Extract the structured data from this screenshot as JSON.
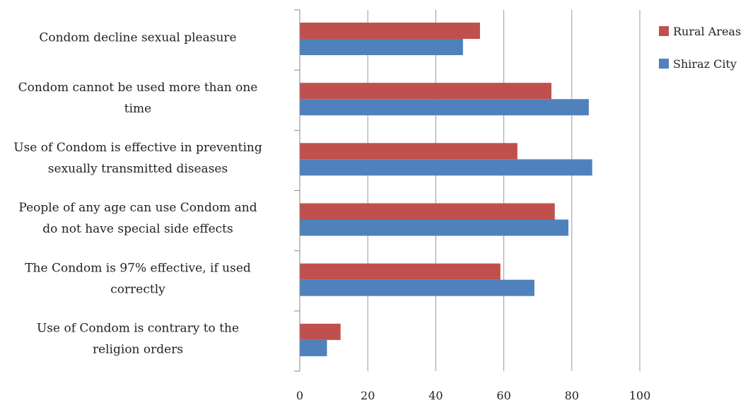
{
  "chart_data": {
    "type": "bar",
    "orientation": "horizontal",
    "categories": [
      [
        "Condom decline sexual pleasure"
      ],
      [
        "Condom cannot be used more than one",
        "time"
      ],
      [
        "Use of Condom is effective in preventing",
        "sexually transmitted diseases"
      ],
      [
        "People of any age can use Condom and",
        "do not have special side effects"
      ],
      [
        "The Condom is 97% effective,  if used",
        "correctly"
      ],
      [
        "Use of  Condom is contrary to the",
        "religion orders"
      ]
    ],
    "series": [
      {
        "name": "Rural Areas",
        "color": "#c0504d",
        "values": [
          53,
          74,
          64,
          75,
          59,
          12
        ]
      },
      {
        "name": "Shiraz City",
        "color": "#4f81bd",
        "values": [
          48,
          85,
          86,
          79,
          69,
          8
        ]
      }
    ],
    "xlim": [
      0,
      100
    ],
    "xticks": [
      0,
      20,
      40,
      60,
      80,
      100
    ],
    "grid": true,
    "legend": "top-right",
    "xlabel": "",
    "ylabel": "",
    "title": ""
  }
}
